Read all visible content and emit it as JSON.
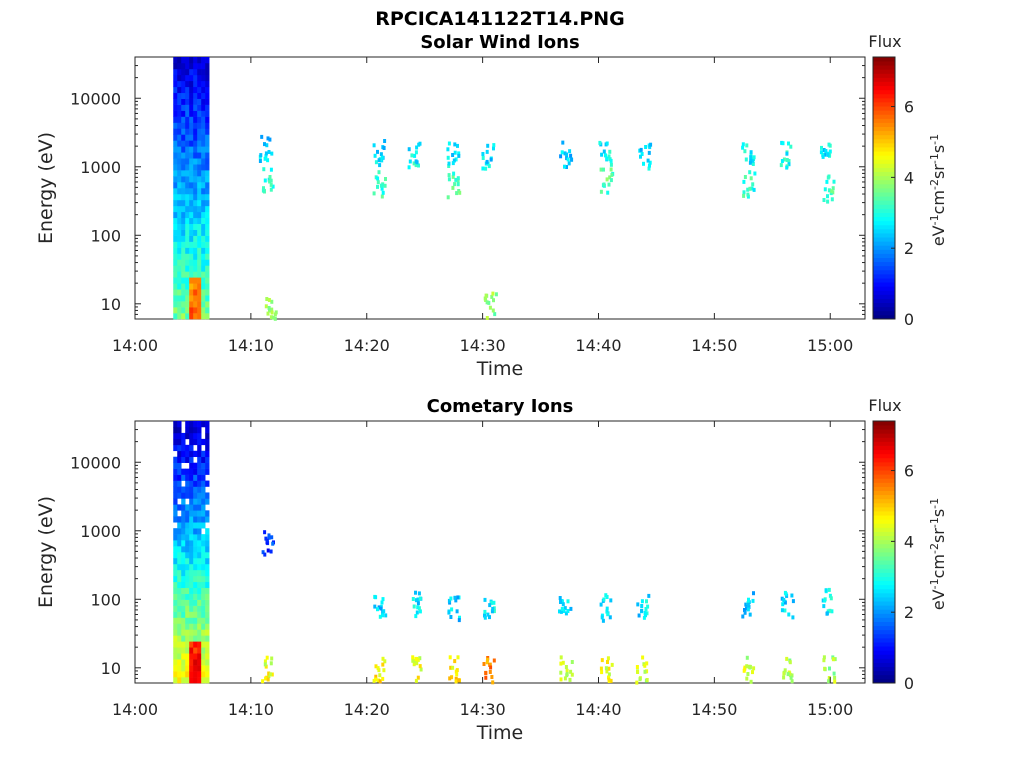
{
  "figure_title": "RPCICA141122T14.PNG",
  "chart_data": [
    {
      "type": "heatmap",
      "title": "Solar Wind Ions",
      "xlabel": "Time",
      "ylabel": "Energy (eV)",
      "x_ticks": [
        "14:00",
        "14:10",
        "14:20",
        "14:30",
        "14:40",
        "14:50",
        "15:00"
      ],
      "y_ticks": [
        "10",
        "100",
        "1000",
        "10000"
      ],
      "y_scale": "log",
      "x_range_minutes_after_1400": [
        0,
        63
      ],
      "y_range_eV": [
        6,
        40000
      ],
      "colorbar": {
        "label": "Flux",
        "units": "eV-1cm-2sr-1s-1",
        "range": [
          0,
          7.4
        ],
        "ticks": [
          "0",
          "2",
          "4",
          "6"
        ],
        "colormap": "jet"
      },
      "column_block": {
        "t_start": 3.3,
        "t_end": 6.4
      },
      "clusters": [
        {
          "t": 11.2,
          "e": 2000,
          "v": 2.5
        },
        {
          "t": 11.3,
          "e": 650,
          "v": 3.0
        },
        {
          "t": 11.6,
          "e": 8.5,
          "v": 4.0
        },
        {
          "t": 20.9,
          "e": 1700,
          "v": 2.6
        },
        {
          "t": 21.0,
          "e": 600,
          "v": 3.2
        },
        {
          "t": 24.0,
          "e": 1600,
          "v": 2.8
        },
        {
          "t": 27.3,
          "e": 1600,
          "v": 2.7
        },
        {
          "t": 27.4,
          "e": 550,
          "v": 3.3
        },
        {
          "t": 30.4,
          "e": 1500,
          "v": 2.6
        },
        {
          "t": 30.6,
          "e": 10,
          "v": 3.8
        },
        {
          "t": 37.1,
          "e": 1600,
          "v": 2.5
        },
        {
          "t": 40.5,
          "e": 1600,
          "v": 2.8
        },
        {
          "t": 40.6,
          "e": 650,
          "v": 3.4
        },
        {
          "t": 43.9,
          "e": 1500,
          "v": 2.6
        },
        {
          "t": 52.8,
          "e": 1600,
          "v": 2.8
        },
        {
          "t": 52.9,
          "e": 600,
          "v": 3.1
        },
        {
          "t": 56.1,
          "e": 1600,
          "v": 2.9
        },
        {
          "t": 59.5,
          "e": 1600,
          "v": 2.7
        },
        {
          "t": 59.7,
          "e": 500,
          "v": 3.2
        }
      ]
    },
    {
      "type": "heatmap",
      "title": "Cometary Ions",
      "xlabel": "Time",
      "ylabel": "Energy (eV)",
      "x_ticks": [
        "14:00",
        "14:10",
        "14:20",
        "14:30",
        "14:40",
        "14:50",
        "15:00"
      ],
      "y_ticks": [
        "10",
        "100",
        "1000",
        "10000"
      ],
      "y_scale": "log",
      "x_range_minutes_after_1400": [
        0,
        63
      ],
      "y_range_eV": [
        6,
        40000
      ],
      "colorbar": {
        "label": "Flux",
        "units": "eV-1cm-2sr-1s-1",
        "range": [
          0,
          7.4
        ],
        "ticks": [
          "0",
          "2",
          "4",
          "6"
        ],
        "colormap": "jet"
      },
      "column_block": {
        "t_start": 3.3,
        "t_end": 6.4
      },
      "clusters": [
        {
          "t": 11.3,
          "e": 10,
          "v": 4.5
        },
        {
          "t": 11.4,
          "e": 700,
          "v": 1.3
        },
        {
          "t": 21.0,
          "e": 90,
          "v": 2.5
        },
        {
          "t": 21.0,
          "e": 10,
          "v": 4.8
        },
        {
          "t": 24.1,
          "e": 90,
          "v": 2.6
        },
        {
          "t": 24.2,
          "e": 10,
          "v": 4.5
        },
        {
          "t": 27.4,
          "e": 80,
          "v": 2.5
        },
        {
          "t": 27.5,
          "e": 10,
          "v": 4.7
        },
        {
          "t": 30.4,
          "e": 70,
          "v": 2.7
        },
        {
          "t": 30.5,
          "e": 10,
          "v": 5.5
        },
        {
          "t": 37.0,
          "e": 75,
          "v": 2.4
        },
        {
          "t": 37.1,
          "e": 10,
          "v": 4.3
        },
        {
          "t": 40.5,
          "e": 80,
          "v": 2.6
        },
        {
          "t": 40.6,
          "e": 10,
          "v": 4.4
        },
        {
          "t": 43.7,
          "e": 85,
          "v": 2.6
        },
        {
          "t": 43.6,
          "e": 10,
          "v": 4.2
        },
        {
          "t": 52.8,
          "e": 85,
          "v": 2.5
        },
        {
          "t": 52.9,
          "e": 10,
          "v": 4.2
        },
        {
          "t": 56.2,
          "e": 90,
          "v": 2.6
        },
        {
          "t": 56.3,
          "e": 10,
          "v": 4.1
        },
        {
          "t": 59.6,
          "e": 95,
          "v": 2.7
        },
        {
          "t": 59.8,
          "e": 10,
          "v": 4.0
        }
      ]
    }
  ]
}
